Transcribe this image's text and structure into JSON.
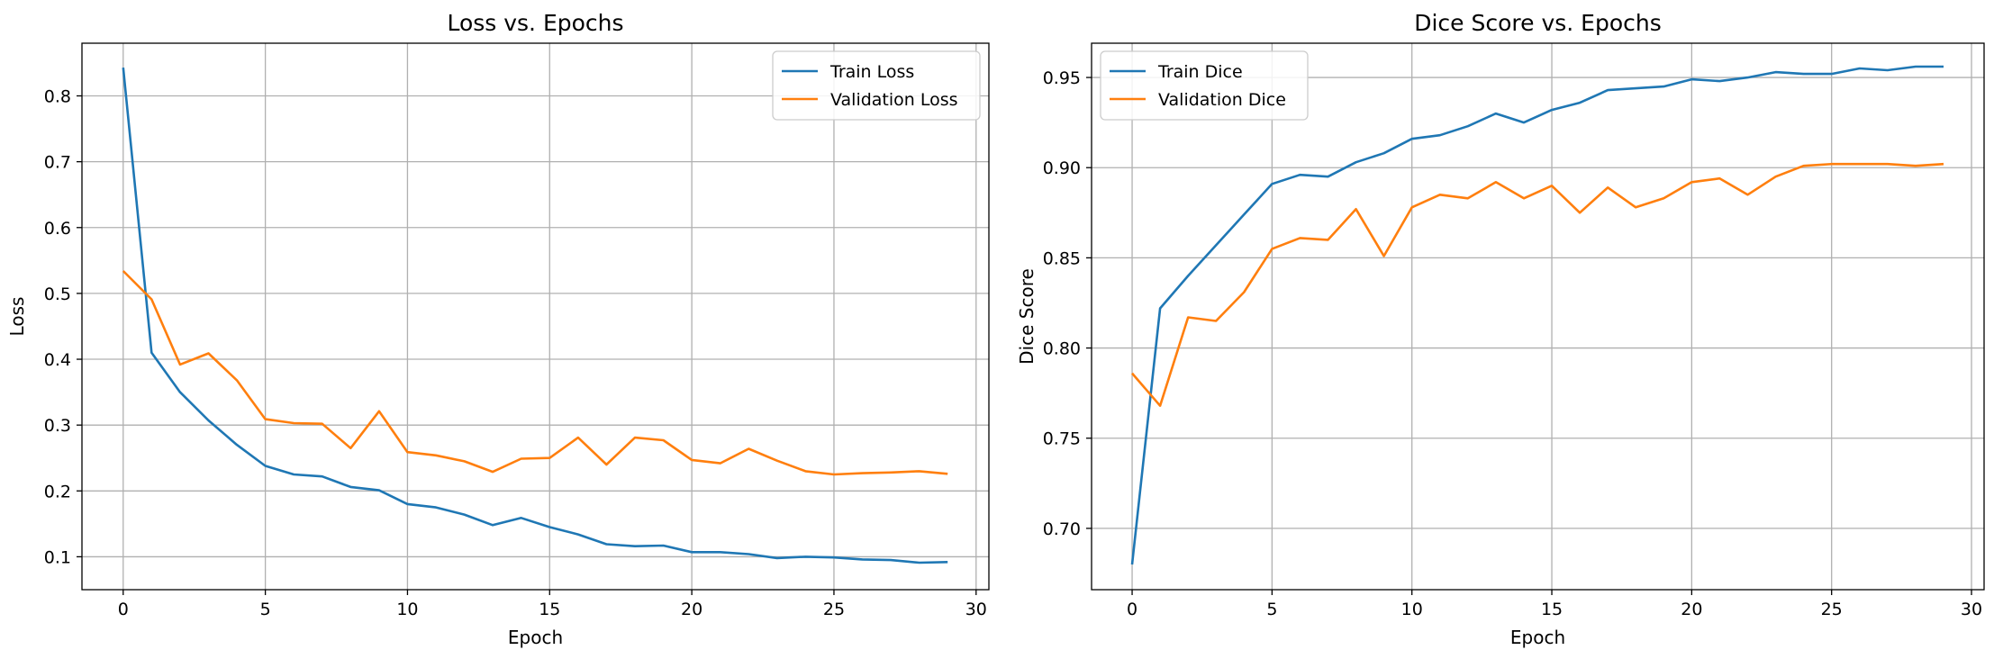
{
  "colors": {
    "train": "#1f77b4",
    "validation": "#ff7f0e",
    "grid": "#b0b0b0"
  },
  "chart_data": [
    {
      "type": "line",
      "title": "Loss vs. Epochs",
      "xlabel": "Epoch",
      "ylabel": "Loss",
      "xlim": [
        -1.45,
        30.45
      ],
      "ylim": [
        0.05,
        0.88
      ],
      "xticks": [
        0,
        5,
        10,
        15,
        20,
        25,
        30
      ],
      "xtick_labels": [
        "0",
        "5",
        "10",
        "15",
        "20",
        "25",
        "30"
      ],
      "yticks": [
        0.1,
        0.2,
        0.3,
        0.4,
        0.5,
        0.6,
        0.7,
        0.8
      ],
      "ytick_labels": [
        "0.1",
        "0.2",
        "0.3",
        "0.4",
        "0.5",
        "0.6",
        "0.7",
        "0.8"
      ],
      "grid": true,
      "legend_position": "top-right",
      "x": [
        0,
        1,
        2,
        3,
        4,
        5,
        6,
        7,
        8,
        9,
        10,
        11,
        12,
        13,
        14,
        15,
        16,
        17,
        18,
        19,
        20,
        21,
        22,
        23,
        24,
        25,
        26,
        27,
        28,
        29
      ],
      "series": [
        {
          "name": "Train Loss",
          "color": "#1f77b4",
          "values": [
            0.843,
            0.41,
            0.35,
            0.307,
            0.27,
            0.238,
            0.225,
            0.222,
            0.206,
            0.201,
            0.18,
            0.175,
            0.164,
            0.148,
            0.159,
            0.145,
            0.134,
            0.119,
            0.116,
            0.117,
            0.107,
            0.107,
            0.104,
            0.098,
            0.1,
            0.099,
            0.096,
            0.095,
            0.091,
            0.092
          ]
        },
        {
          "name": "Validation Loss",
          "color": "#ff7f0e",
          "values": [
            0.534,
            0.491,
            0.392,
            0.409,
            0.368,
            0.309,
            0.303,
            0.302,
            0.265,
            0.321,
            0.259,
            0.254,
            0.245,
            0.229,
            0.249,
            0.25,
            0.281,
            0.24,
            0.281,
            0.277,
            0.247,
            0.242,
            0.264,
            0.246,
            0.23,
            0.225,
            0.227,
            0.228,
            0.23,
            0.226
          ]
        }
      ]
    },
    {
      "type": "line",
      "title": "Dice Score vs. Epochs",
      "xlabel": "Epoch",
      "ylabel": "Dice Score",
      "xlim": [
        -1.45,
        30.45
      ],
      "ylim": [
        0.666,
        0.969
      ],
      "xticks": [
        0,
        5,
        10,
        15,
        20,
        25,
        30
      ],
      "xtick_labels": [
        "0",
        "5",
        "10",
        "15",
        "20",
        "25",
        "30"
      ],
      "yticks": [
        0.7,
        0.75,
        0.8,
        0.85,
        0.9,
        0.95
      ],
      "ytick_labels": [
        "0.70",
        "0.75",
        "0.80",
        "0.85",
        "0.90",
        "0.95"
      ],
      "grid": true,
      "legend_position": "top-left",
      "x": [
        0,
        1,
        2,
        3,
        4,
        5,
        6,
        7,
        8,
        9,
        10,
        11,
        12,
        13,
        14,
        15,
        16,
        17,
        18,
        19,
        20,
        21,
        22,
        23,
        24,
        25,
        26,
        27,
        28,
        29
      ],
      "series": [
        {
          "name": "Train Dice",
          "color": "#1f77b4",
          "values": [
            0.68,
            0.822,
            0.84,
            0.857,
            0.874,
            0.891,
            0.896,
            0.895,
            0.903,
            0.908,
            0.916,
            0.918,
            0.923,
            0.93,
            0.925,
            0.932,
            0.936,
            0.943,
            0.944,
            0.945,
            0.949,
            0.948,
            0.95,
            0.953,
            0.952,
            0.952,
            0.955,
            0.954,
            0.956,
            0.956
          ]
        },
        {
          "name": "Validation Dice",
          "color": "#ff7f0e",
          "values": [
            0.786,
            0.768,
            0.817,
            0.815,
            0.831,
            0.855,
            0.861,
            0.86,
            0.877,
            0.851,
            0.878,
            0.885,
            0.883,
            0.892,
            0.883,
            0.89,
            0.875,
            0.889,
            0.878,
            0.883,
            0.892,
            0.894,
            0.885,
            0.895,
            0.901,
            0.902,
            0.902,
            0.902,
            0.901,
            0.902
          ]
        }
      ]
    }
  ]
}
